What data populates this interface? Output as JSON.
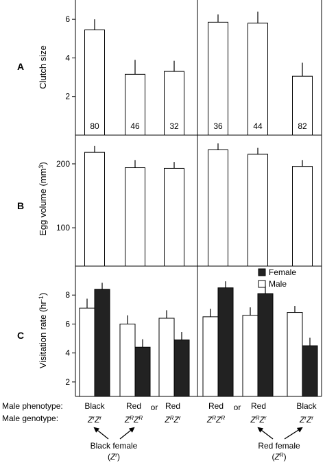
{
  "chart_data": [
    {
      "type": "bar",
      "panel_label": "A",
      "ylabel": "Clutch size",
      "ylim": [
        0,
        7
      ],
      "yticks": [
        2,
        4,
        6
      ],
      "categories": [
        "1",
        "2",
        "3",
        "4",
        "5",
        "6"
      ],
      "series": [
        {
          "name": "",
          "color": "#ffffff",
          "values": [
            5.45,
            3.15,
            3.3,
            5.85,
            5.8,
            3.05
          ],
          "errors": [
            0.55,
            0.75,
            0.55,
            0.4,
            0.6,
            0.7
          ]
        }
      ],
      "data_labels": [
        "80",
        "46",
        "32",
        "36",
        "44",
        "82"
      ]
    },
    {
      "type": "bar",
      "panel_label": "B",
      "ylabel": "Egg volume (mm",
      "ylabel_sup": "3",
      "ylabel_end": ")",
      "ylim": [
        40,
        245
      ],
      "yticks": [
        100,
        200
      ],
      "categories": [
        "1",
        "2",
        "3",
        "4",
        "5",
        "6"
      ],
      "series": [
        {
          "name": "",
          "color": "#ffffff",
          "values": [
            218,
            194,
            193,
            222,
            215,
            196
          ],
          "errors": [
            10,
            12,
            10,
            10,
            10,
            10
          ]
        }
      ]
    },
    {
      "type": "bar",
      "panel_label": "C",
      "ylabel": "Visitation rate (hr",
      "ylabel_sup": "-1",
      "ylabel_end": ")",
      "ylim": [
        1,
        10
      ],
      "yticks": [
        2,
        4,
        6,
        8
      ],
      "categories": [
        "1",
        "2",
        "3",
        "4",
        "5",
        "6"
      ],
      "series": [
        {
          "name": "Male",
          "color": "#ffffff",
          "values": [
            7.1,
            6.0,
            6.4,
            6.5,
            6.6,
            6.8
          ],
          "errors": [
            0.65,
            0.6,
            0.55,
            0.55,
            0.55,
            0.45
          ]
        },
        {
          "name": "Female",
          "color": "#222222",
          "values": [
            8.4,
            4.4,
            4.9,
            8.5,
            8.1,
            4.5
          ],
          "errors": [
            0.45,
            0.55,
            0.55,
            0.45,
            0.55,
            0.55
          ]
        }
      ],
      "legend": "top-right"
    }
  ],
  "footer": {
    "phenotype_row_label": "Male phenotype:",
    "genotype_row_label": "Male genotype:",
    "phenotypes": [
      "Black",
      "Red",
      "Red",
      "Red",
      "Red",
      "Black"
    ],
    "or_text": "or",
    "genotypes": [
      {
        "a": "Z",
        "a_sup": "r",
        "b": "Z",
        "b_sup": "r"
      },
      {
        "a": "Z",
        "a_sup": "R",
        "b": "Z",
        "b_sup": "R"
      },
      {
        "a": "Z",
        "a_sup": "R",
        "b": "Z",
        "b_sup": "r"
      },
      {
        "a": "Z",
        "a_sup": "R",
        "b": "Z",
        "b_sup": "R"
      },
      {
        "a": "Z",
        "a_sup": "R",
        "b": "Z",
        "b_sup": "r"
      },
      {
        "a": "Z",
        "a_sup": "r",
        "b": "Z",
        "b_sup": "r"
      }
    ],
    "female_groups": [
      {
        "label": "Black female",
        "geno_open": "(",
        "geno": "Z",
        "geno_sup": "r",
        "geno_close": ")"
      },
      {
        "label": "Red female",
        "geno_open": "(",
        "geno": "Z",
        "geno_sup": "R",
        "geno_close": ")"
      }
    ]
  }
}
